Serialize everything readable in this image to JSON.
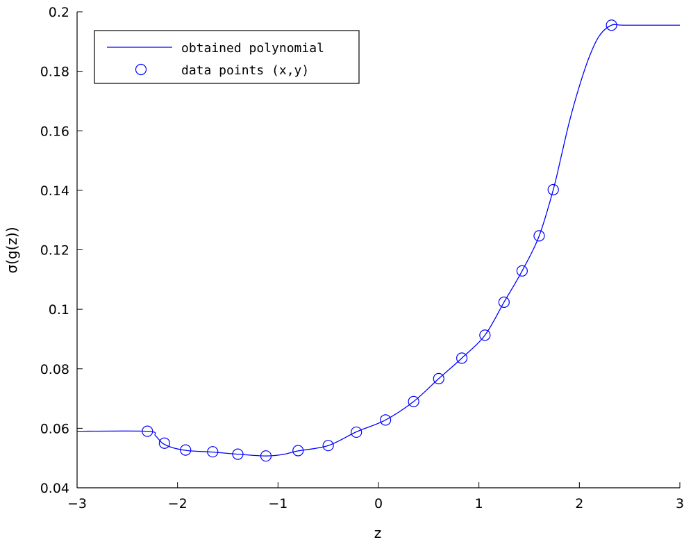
{
  "chart_data": {
    "type": "line",
    "title": "",
    "xlabel": "z",
    "ylabel": "σ(g(z))",
    "xlim": [
      -3,
      3
    ],
    "ylim": [
      0.04,
      0.2
    ],
    "xticks": [
      -3,
      -2,
      -1,
      0,
      1,
      2,
      3
    ],
    "xtick_labels": [
      "−3",
      "−2",
      "−1",
      "0",
      "1",
      "2",
      "3"
    ],
    "yticks": [
      0.04,
      0.06,
      0.08,
      0.1,
      0.12,
      0.14,
      0.16,
      0.18,
      0.2
    ],
    "ytick_labels": [
      "0.04",
      "0.06",
      "0.08",
      "0.1",
      "0.12",
      "0.14",
      "0.16",
      "0.18",
      "0.2"
    ],
    "grid": false,
    "legend_position": "top-left",
    "colors": {
      "series": "#0000ff",
      "axes": "#000000"
    },
    "series": [
      {
        "name": "obtained polynomial",
        "kind": "line",
        "x": [
          -3.0,
          -2.3,
          -2.22,
          -2.15,
          -2.05,
          -1.9,
          -1.65,
          -1.4,
          -1.12,
          -0.95,
          -0.8,
          -0.5,
          -0.22,
          0.07,
          0.35,
          0.6,
          0.83,
          1.06,
          1.25,
          1.43,
          1.6,
          1.74,
          1.82,
          1.9,
          2.0,
          2.1,
          2.2,
          2.32,
          2.45,
          3.0
        ],
        "y": [
          0.059,
          0.059,
          0.0575,
          0.055,
          0.0535,
          0.0525,
          0.052,
          0.0513,
          0.0507,
          0.0512,
          0.0524,
          0.0542,
          0.0588,
          0.0628,
          0.069,
          0.0767,
          0.0836,
          0.0913,
          0.1024,
          0.1129,
          0.1247,
          0.1402,
          0.1515,
          0.163,
          0.175,
          0.185,
          0.192,
          0.1955,
          0.1955,
          0.1955
        ]
      },
      {
        "name": "data points (x,y)",
        "kind": "markers",
        "marker": "circle",
        "x": [
          -2.3,
          -2.13,
          -1.92,
          -1.65,
          -1.4,
          -1.12,
          -0.8,
          -0.5,
          -0.22,
          0.07,
          0.35,
          0.6,
          0.83,
          1.06,
          1.25,
          1.43,
          1.6,
          1.74,
          2.32
        ],
        "y": [
          0.059,
          0.055,
          0.0527,
          0.0521,
          0.0513,
          0.0507,
          0.0525,
          0.0542,
          0.0587,
          0.0628,
          0.069,
          0.0767,
          0.0836,
          0.0913,
          0.1024,
          0.1129,
          0.1247,
          0.1402,
          0.1955
        ]
      }
    ]
  }
}
